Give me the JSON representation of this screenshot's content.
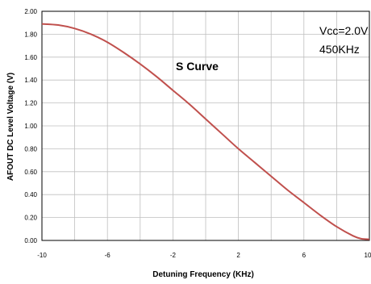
{
  "chart_data": {
    "type": "line",
    "title": "S Curve",
    "xlabel": "Detuning Frequency  (KHz)",
    "ylabel": "AFOUT  DC  Level  Voltage   (V)",
    "xlim": [
      -10,
      10
    ],
    "ylim": [
      0,
      2.0
    ],
    "x_ticks": [
      -10,
      -6,
      -2,
      2,
      6,
      10
    ],
    "x_tick_labels": [
      "-10",
      "-6",
      "-2",
      "2",
      "6",
      "10"
    ],
    "y_ticks": [
      0,
      0.2,
      0.4,
      0.6,
      0.8,
      1.0,
      1.2,
      1.4,
      1.6,
      1.8,
      2.0
    ],
    "y_tick_labels": [
      "0.00",
      "0.20",
      "0.40",
      "0.60",
      "0.80",
      "1.00",
      "1.20",
      "1.40",
      "1.60",
      "1.80",
      "2.00"
    ],
    "grid": true,
    "annotations": [
      "Vcc=2.0V",
      "450KHz"
    ],
    "line_color": "#c0504d",
    "series": [
      {
        "x": [
          -10,
          -9,
          -8,
          -7,
          -6,
          -5,
          -4,
          -3,
          -2,
          -1,
          0,
          1,
          2,
          3,
          4,
          5,
          6,
          7,
          8,
          9,
          9.5,
          10
        ],
        "values": [
          1.89,
          1.88,
          1.85,
          1.8,
          1.73,
          1.64,
          1.54,
          1.43,
          1.31,
          1.19,
          1.06,
          0.93,
          0.8,
          0.68,
          0.56,
          0.44,
          0.33,
          0.22,
          0.12,
          0.04,
          0.015,
          0.01
        ]
      }
    ]
  }
}
